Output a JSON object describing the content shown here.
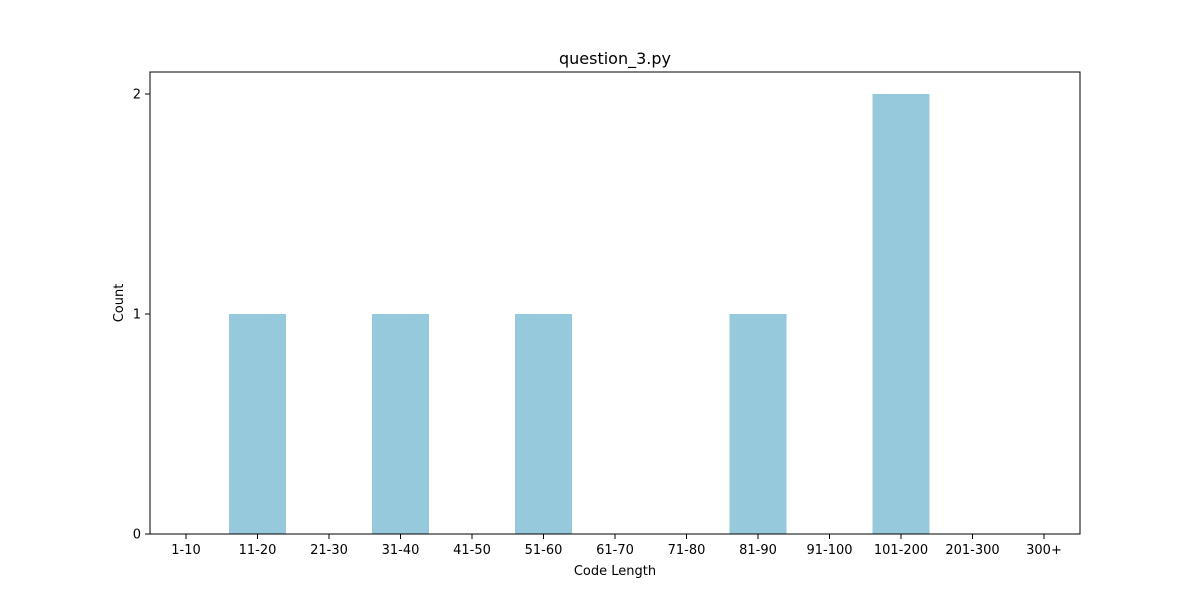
{
  "chart_data": {
    "type": "bar",
    "title": "question_3.py",
    "xlabel": "Code Length",
    "ylabel": "Count",
    "categories": [
      "1-10",
      "11-20",
      "21-30",
      "31-40",
      "41-50",
      "51-60",
      "61-70",
      "71-80",
      "81-90",
      "91-100",
      "101-200",
      "201-300",
      "300+"
    ],
    "values": [
      0,
      1,
      0,
      1,
      0,
      1,
      0,
      0,
      1,
      0,
      2,
      0,
      0
    ],
    "yticks": [
      "0",
      "1",
      "2"
    ],
    "ylim": [
      0,
      2.1
    ],
    "grid": false,
    "legend": "none",
    "bar_color": "#96c9dc"
  }
}
